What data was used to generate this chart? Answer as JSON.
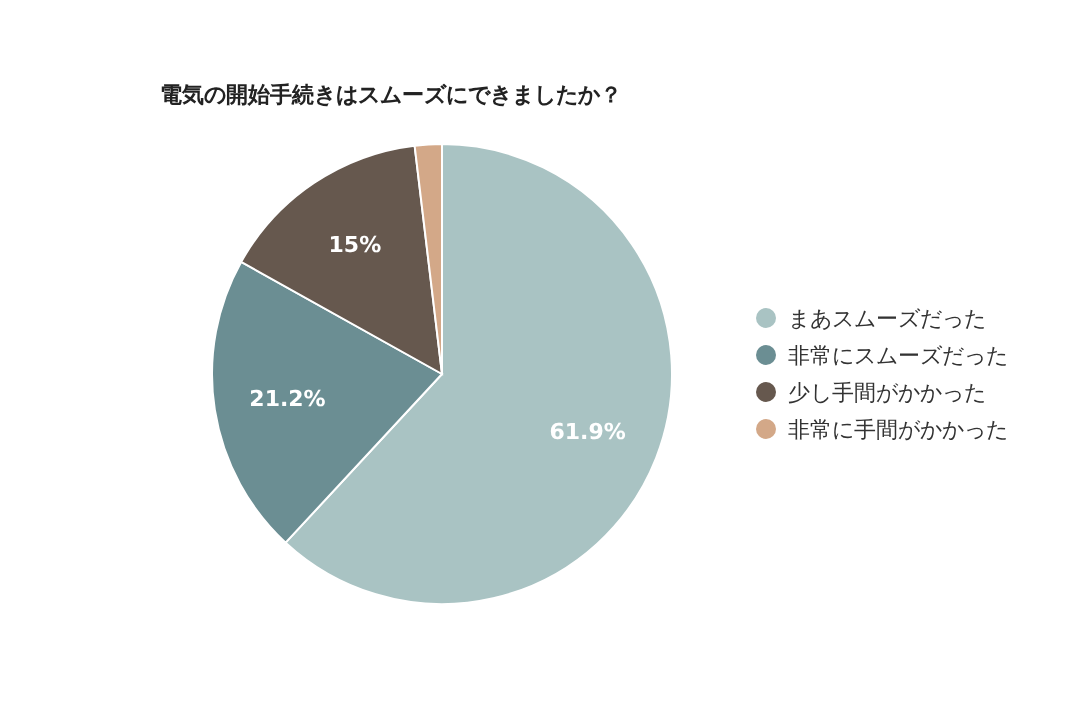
{
  "chart_data": {
    "type": "pie",
    "title": "電気の開始手続きはスムーズにできましたか？",
    "categories": [
      "まあスムーズだった",
      "非常にスムーズだった",
      "少し手間がかかった",
      "非常に手間がかかった"
    ],
    "values": [
      61.9,
      21.2,
      15,
      1.9
    ],
    "colors": [
      "#a9c3c3",
      "#6b8e93",
      "#66584e",
      "#d3a888"
    ],
    "value_labels": [
      "61.9%",
      "21.2%",
      "15%",
      null
    ],
    "legend": "right"
  }
}
